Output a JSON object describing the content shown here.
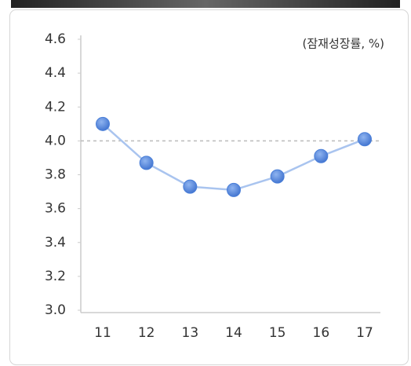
{
  "chart_data": {
    "type": "line",
    "unit_label": "(잠재성장률, %)",
    "categories": [
      "11",
      "12",
      "13",
      "14",
      "15",
      "16",
      "17"
    ],
    "series": [
      {
        "color": "#4a7fd8",
        "line_color": "#a9c4ef",
        "values": [
          4.1,
          3.87,
          3.73,
          3.71,
          3.79,
          3.91,
          4.01
        ]
      }
    ],
    "ylim": [
      3.0,
      4.6
    ],
    "yticks": [
      {
        "value": 3,
        "label": "3.0"
      },
      3.2,
      3.4,
      3.6,
      3.8,
      {
        "value": 4,
        "label": "4.0"
      },
      4.2,
      4.4,
      4.6
    ],
    "reference_line": 4,
    "grid": false
  }
}
